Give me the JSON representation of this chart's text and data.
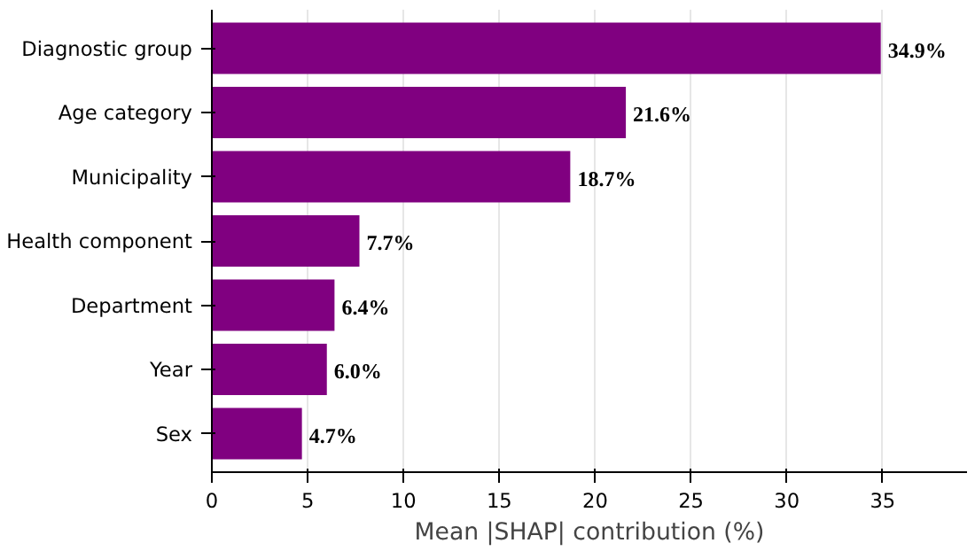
{
  "chart_data": {
    "type": "bar",
    "orientation": "horizontal",
    "xlabel": "Mean |SHAP| contribution (%)",
    "categories": [
      "Diagnostic group",
      "Age category",
      "Municipality",
      "Health component",
      "Department",
      "Year",
      "Sex"
    ],
    "values": [
      34.9,
      21.6,
      18.7,
      7.7,
      6.4,
      6.0,
      4.7
    ],
    "value_labels": [
      "34.9%",
      "21.6%",
      "18.7%",
      "7.7%",
      "6.4%",
      "6.0%",
      "4.7%"
    ],
    "color": "#800080",
    "xlim": [
      0,
      39.4
    ],
    "xticks": [
      0,
      5,
      10,
      15,
      20,
      25,
      30,
      35
    ],
    "grid": "x"
  }
}
